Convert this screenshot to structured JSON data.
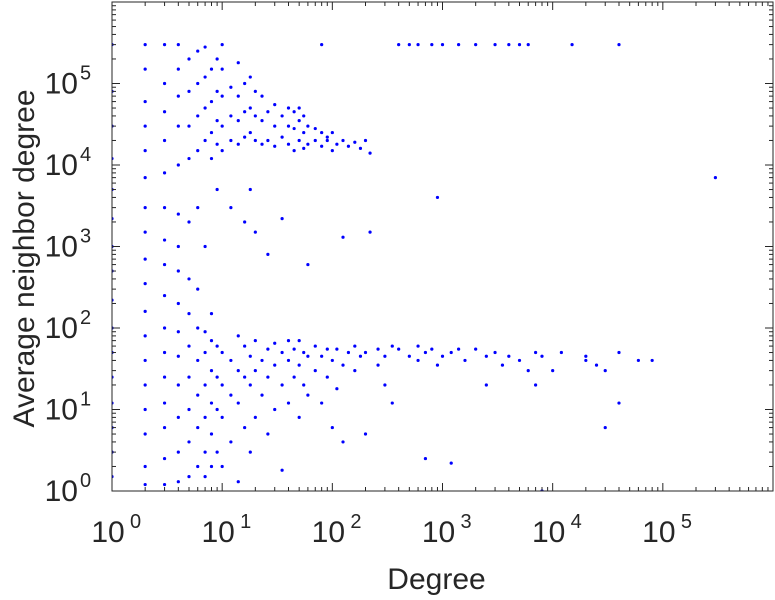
{
  "chart_data": {
    "type": "scatter",
    "title": "",
    "xlabel": "Degree",
    "ylabel": "Average neighbor degree",
    "x_scale": "log",
    "y_scale": "log",
    "xlim": [
      1,
      1000000
    ],
    "ylim": [
      1,
      1000000
    ],
    "x_ticks": [
      {
        "base": "10",
        "exp": "0"
      },
      {
        "base": "10",
        "exp": "1"
      },
      {
        "base": "10",
        "exp": "2"
      },
      {
        "base": "10",
        "exp": "3"
      },
      {
        "base": "10",
        "exp": "4"
      },
      {
        "base": "10",
        "exp": "5"
      }
    ],
    "y_ticks": [
      {
        "base": "10",
        "exp": "0"
      },
      {
        "base": "10",
        "exp": "1"
      },
      {
        "base": "10",
        "exp": "2"
      },
      {
        "base": "10",
        "exp": "3"
      },
      {
        "base": "10",
        "exp": "4"
      },
      {
        "base": "10",
        "exp": "5"
      }
    ],
    "grid": false,
    "legend": "none",
    "marker_color": "#0000ff",
    "series": [
      {
        "values": [
          [
            1,
            1.5
          ],
          [
            1,
            3
          ],
          [
            1,
            6
          ],
          [
            1,
            12
          ],
          [
            1,
            25
          ],
          [
            1,
            50
          ],
          [
            1,
            100
          ],
          [
            1,
            220
          ],
          [
            1,
            500
          ],
          [
            1,
            1000
          ],
          [
            1,
            2200
          ],
          [
            1,
            5000
          ],
          [
            1,
            12000
          ],
          [
            1,
            30000
          ],
          [
            1,
            80000
          ],
          [
            1,
            300000
          ],
          [
            2,
            1.2
          ],
          [
            2,
            2
          ],
          [
            2,
            5
          ],
          [
            2,
            10
          ],
          [
            2,
            20
          ],
          [
            2,
            40
          ],
          [
            2,
            80
          ],
          [
            2,
            160
          ],
          [
            2,
            350
          ],
          [
            2,
            700
          ],
          [
            2,
            1500
          ],
          [
            2,
            3000
          ],
          [
            2,
            7000
          ],
          [
            2,
            15000
          ],
          [
            2,
            30000
          ],
          [
            2,
            60000
          ],
          [
            2,
            150000
          ],
          [
            2,
            300000
          ],
          [
            3,
            1.2
          ],
          [
            3,
            2.5
          ],
          [
            3,
            6
          ],
          [
            3,
            12
          ],
          [
            3,
            25
          ],
          [
            3,
            50
          ],
          [
            3,
            100
          ],
          [
            3,
            250
          ],
          [
            3,
            600
          ],
          [
            3,
            1200
          ],
          [
            3,
            3000
          ],
          [
            3,
            8000
          ],
          [
            3,
            20000
          ],
          [
            3,
            45000
          ],
          [
            3,
            100000
          ],
          [
            3,
            300000
          ],
          [
            4,
            1.3
          ],
          [
            4,
            3
          ],
          [
            4,
            8
          ],
          [
            4,
            20
          ],
          [
            4,
            45
          ],
          [
            4,
            90
          ],
          [
            4,
            200
          ],
          [
            4,
            500
          ],
          [
            4,
            1000
          ],
          [
            4,
            2500
          ],
          [
            4,
            10000
          ],
          [
            4,
            30000
          ],
          [
            4,
            70000
          ],
          [
            4,
            150000
          ],
          [
            4,
            300000
          ],
          [
            5,
            1.5
          ],
          [
            5,
            4
          ],
          [
            5,
            10
          ],
          [
            5,
            25
          ],
          [
            5,
            60
          ],
          [
            5,
            150
          ],
          [
            5,
            400
          ],
          [
            5,
            2000
          ],
          [
            5,
            12000
          ],
          [
            5,
            30000
          ],
          [
            5,
            80000
          ],
          [
            5,
            200000
          ],
          [
            6,
            2
          ],
          [
            6,
            6
          ],
          [
            6,
            15
          ],
          [
            6,
            40
          ],
          [
            6,
            100
          ],
          [
            6,
            300
          ],
          [
            6,
            3000
          ],
          [
            6,
            15000
          ],
          [
            6,
            40000
          ],
          [
            6,
            100000
          ],
          [
            6,
            250000
          ],
          [
            7,
            1.5
          ],
          [
            7,
            3
          ],
          [
            7,
            8
          ],
          [
            7,
            20
          ],
          [
            7,
            50
          ],
          [
            7,
            90
          ],
          [
            7,
            1000
          ],
          [
            7,
            20000
          ],
          [
            7,
            50000
          ],
          [
            7,
            120000
          ],
          [
            7,
            280000
          ],
          [
            8,
            2
          ],
          [
            8,
            5
          ],
          [
            8,
            12
          ],
          [
            8,
            30
          ],
          [
            8,
            70
          ],
          [
            8,
            150
          ],
          [
            8,
            12000
          ],
          [
            8,
            25000
          ],
          [
            8,
            60000
          ],
          [
            8,
            150000
          ],
          [
            9,
            3
          ],
          [
            9,
            10
          ],
          [
            9,
            25
          ],
          [
            9,
            60
          ],
          [
            9,
            5000
          ],
          [
            9,
            18000
          ],
          [
            9,
            35000
          ],
          [
            9,
            80000
          ],
          [
            9,
            200000
          ],
          [
            10,
            2
          ],
          [
            10,
            8
          ],
          [
            10,
            20
          ],
          [
            10,
            50
          ],
          [
            10,
            15000
          ],
          [
            10,
            30000
          ],
          [
            10,
            70000
          ],
          [
            10,
            150000
          ],
          [
            10,
            300000
          ],
          [
            12,
            4
          ],
          [
            12,
            15
          ],
          [
            12,
            40
          ],
          [
            12,
            3000
          ],
          [
            12,
            20000
          ],
          [
            12,
            40000
          ],
          [
            12,
            90000
          ],
          [
            14,
            1.3
          ],
          [
            14,
            12
          ],
          [
            14,
            30
          ],
          [
            14,
            80
          ],
          [
            14,
            18000
          ],
          [
            14,
            35000
          ],
          [
            14,
            70000
          ],
          [
            14,
            180000
          ],
          [
            16,
            6
          ],
          [
            16,
            25
          ],
          [
            16,
            60
          ],
          [
            16,
            2000
          ],
          [
            16,
            22000
          ],
          [
            16,
            45000
          ],
          [
            16,
            100000
          ],
          [
            18,
            3
          ],
          [
            18,
            20
          ],
          [
            18,
            45
          ],
          [
            18,
            5000
          ],
          [
            18,
            25000
          ],
          [
            18,
            50000
          ],
          [
            18,
            120000
          ],
          [
            20,
            8
          ],
          [
            20,
            30
          ],
          [
            20,
            70
          ],
          [
            20,
            1500
          ],
          [
            20,
            20000
          ],
          [
            20,
            40000
          ],
          [
            20,
            80000
          ],
          [
            23,
            15
          ],
          [
            23,
            40
          ],
          [
            23,
            18000
          ],
          [
            23,
            35000
          ],
          [
            23,
            70000
          ],
          [
            26,
            5
          ],
          [
            26,
            25
          ],
          [
            26,
            55
          ],
          [
            26,
            800
          ],
          [
            26,
            20000
          ],
          [
            26,
            45000
          ],
          [
            30,
            10
          ],
          [
            30,
            35
          ],
          [
            30,
            65
          ],
          [
            30,
            17000
          ],
          [
            30,
            30000
          ],
          [
            30,
            55000
          ],
          [
            35,
            1.8
          ],
          [
            35,
            20
          ],
          [
            35,
            50
          ],
          [
            35,
            2200
          ],
          [
            35,
            22000
          ],
          [
            35,
            40000
          ],
          [
            40,
            12
          ],
          [
            40,
            40
          ],
          [
            40,
            70
          ],
          [
            40,
            18000
          ],
          [
            40,
            30000
          ],
          [
            40,
            50000
          ],
          [
            45,
            25
          ],
          [
            45,
            55
          ],
          [
            45,
            15000
          ],
          [
            45,
            28000
          ],
          [
            45,
            45000
          ],
          [
            50,
            8
          ],
          [
            50,
            35
          ],
          [
            50,
            70
          ],
          [
            50,
            20000
          ],
          [
            50,
            35000
          ],
          [
            50,
            50000
          ],
          [
            55,
            20
          ],
          [
            55,
            50
          ],
          [
            55,
            16000
          ],
          [
            55,
            25000
          ],
          [
            55,
            40000
          ],
          [
            60,
            15
          ],
          [
            60,
            45
          ],
          [
            60,
            600
          ],
          [
            60,
            18000
          ],
          [
            60,
            30000
          ],
          [
            70,
            30
          ],
          [
            70,
            60
          ],
          [
            70,
            20000
          ],
          [
            70,
            28000
          ],
          [
            80,
            12
          ],
          [
            80,
            45
          ],
          [
            80,
            300000
          ],
          [
            80,
            17000
          ],
          [
            80,
            25000
          ],
          [
            90,
            25
          ],
          [
            90,
            55
          ],
          [
            90,
            20000
          ],
          [
            90,
            22000
          ],
          [
            100,
            6
          ],
          [
            100,
            40
          ],
          [
            100,
            15000
          ],
          [
            100,
            25000
          ],
          [
            110,
            18
          ],
          [
            110,
            55
          ],
          [
            110,
            18000
          ],
          [
            125,
            4
          ],
          [
            125,
            35
          ],
          [
            125,
            1300
          ],
          [
            125,
            20000
          ],
          [
            140,
            50
          ],
          [
            140,
            17000
          ],
          [
            160,
            30
          ],
          [
            160,
            60
          ],
          [
            160,
            19000
          ],
          [
            180,
            45
          ],
          [
            180,
            16000
          ],
          [
            200,
            5
          ],
          [
            200,
            50
          ],
          [
            200,
            20000
          ],
          [
            220,
            1500
          ],
          [
            220,
            14000
          ],
          [
            260,
            35
          ],
          [
            260,
            55
          ],
          [
            300,
            45
          ],
          [
            300,
            20
          ],
          [
            350,
            12
          ],
          [
            350,
            60
          ],
          [
            400,
            300000
          ],
          [
            400,
            55
          ],
          [
            500,
            45
          ],
          [
            500,
            300000
          ],
          [
            600,
            60
          ],
          [
            600,
            40
          ],
          [
            600,
            300000
          ],
          [
            700,
            2.5
          ],
          [
            700,
            50
          ],
          [
            800,
            55
          ],
          [
            800,
            300000
          ],
          [
            900,
            35
          ],
          [
            900,
            4000
          ],
          [
            1000,
            45
          ],
          [
            1000,
            300000
          ],
          [
            1200,
            2.2
          ],
          [
            1200,
            50
          ],
          [
            1400,
            55
          ],
          [
            1400,
            300000
          ],
          [
            1600,
            40
          ],
          [
            2000,
            55
          ],
          [
            2000,
            300000
          ],
          [
            2500,
            45
          ],
          [
            2500,
            20
          ],
          [
            3000,
            50
          ],
          [
            3000,
            300000
          ],
          [
            3500,
            35
          ],
          [
            4000,
            300000
          ],
          [
            4000,
            45
          ],
          [
            5000,
            300000
          ],
          [
            5000,
            40
          ],
          [
            6000,
            300000
          ],
          [
            6000,
            30
          ],
          [
            7000,
            50
          ],
          [
            7000,
            20
          ],
          [
            8000,
            45
          ],
          [
            8000,
            1
          ],
          [
            10000,
            30
          ],
          [
            12000,
            50
          ],
          [
            15000,
            300000
          ],
          [
            20000,
            45
          ],
          [
            20000,
            40
          ],
          [
            25000,
            35
          ],
          [
            30000,
            6
          ],
          [
            30000,
            30
          ],
          [
            40000,
            12
          ],
          [
            40000,
            300000
          ],
          [
            40000,
            50
          ],
          [
            60000,
            40
          ],
          [
            80000,
            40
          ],
          [
            300000,
            7000
          ]
        ]
      }
    ]
  }
}
